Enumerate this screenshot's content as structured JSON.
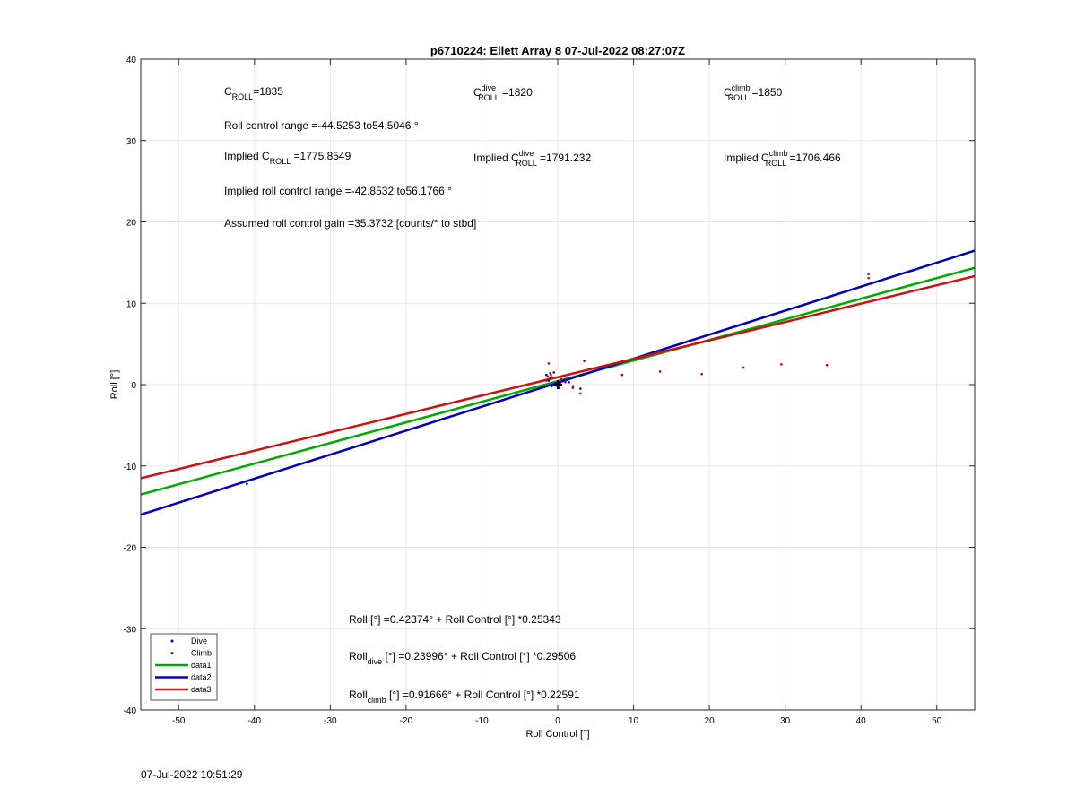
{
  "chart_data": {
    "type": "scatter",
    "title": "p6710224: Ellett Array 8 07-Jul-2022 08:27:07Z",
    "xlabel": "Roll Control [°]",
    "ylabel": "Roll [°]",
    "xlim": [
      -55,
      55
    ],
    "ylim": [
      -40,
      40
    ],
    "xticks": [
      -50,
      -40,
      -30,
      -20,
      -10,
      0,
      10,
      20,
      30,
      40,
      50
    ],
    "yticks": [
      -40,
      -30,
      -20,
      -10,
      0,
      10,
      20,
      30,
      40
    ],
    "grid": true,
    "legend_position": "bottom-left",
    "series": [
      {
        "name": "Dive",
        "kind": "points",
        "color": "#0000cc",
        "points": [
          [
            -41,
            -12.2
          ],
          [
            -2.5,
            -0.5
          ],
          [
            -1.8,
            -0.3
          ],
          [
            -1.5,
            1.2
          ],
          [
            -1.2,
            0.5
          ],
          [
            -1,
            0.8
          ],
          [
            -0.8,
            -0.2
          ],
          [
            -0.5,
            1.5
          ],
          [
            -0.3,
            0.2
          ],
          [
            0,
            -0.3
          ],
          [
            0.3,
            0.1
          ],
          [
            0.5,
            0.4
          ],
          [
            1,
            0.6
          ],
          [
            1.5,
            0.3
          ],
          [
            2,
            -0.2
          ],
          [
            3,
            -0.5
          ],
          [
            -0.2,
            -0.1
          ],
          [
            0.2,
            -0.4
          ]
        ]
      },
      {
        "name": "Climb",
        "kind": "points",
        "color": "#cc0000",
        "points": [
          [
            -1.5,
            0.5
          ],
          [
            -1.2,
            2.6
          ],
          [
            -1,
            1.4
          ],
          [
            -0.8,
            0.9
          ],
          [
            0.5,
            0.7
          ],
          [
            1,
            0.3
          ],
          [
            2,
            -0.4
          ],
          [
            3,
            -1.1
          ],
          [
            3.5,
            2.9
          ],
          [
            8.5,
            1.2
          ],
          [
            13.5,
            1.6
          ],
          [
            19,
            1.3
          ],
          [
            24.5,
            2.1
          ],
          [
            29.5,
            2.5
          ],
          [
            35.5,
            2.4
          ],
          [
            41,
            13.6
          ],
          [
            41,
            13.1
          ],
          [
            -1.3,
            1.0
          ],
          [
            -0.9,
            1.2
          ]
        ]
      },
      {
        "name": "data1",
        "kind": "line",
        "color": "#00aa00",
        "intercept": 0.42374,
        "slope": 0.25343
      },
      {
        "name": "data2",
        "kind": "line",
        "color": "#0000bb",
        "intercept": 0.23996,
        "slope": 0.29506
      },
      {
        "name": "data3",
        "kind": "line",
        "color": "#cc1111",
        "intercept": 0.91666,
        "slope": 0.22591
      }
    ],
    "center_marker": [
      0,
      0
    ],
    "annotations": {
      "c_roll": {
        "main": "C",
        "sub": "ROLL",
        "value": "=1835"
      },
      "c_roll_dive": {
        "main": "C",
        "sup": "dive",
        "sub": "ROLL",
        "value": " =1820"
      },
      "c_roll_climb": {
        "main": "C",
        "sup": "climb",
        "sub": "ROLL",
        "value": " =1850"
      },
      "roll_control_range": "Roll control range =-44.5253 to54.5046 °",
      "implied_c_roll": {
        "main": "Implied C",
        "sub": "ROLL",
        "value": " =1775.8549"
      },
      "implied_c_roll_dive": {
        "main": "Implied C",
        "sup": "dive",
        "sub": "ROLL",
        "value": " =1791.232"
      },
      "implied_c_roll_climb": {
        "main": "Implied C",
        "sup": "climb",
        "sub": "ROLL",
        "value": " =1706.466"
      },
      "implied_roll_control_range": "Implied roll control range =-42.8532 to56.1766 °",
      "assumed_gain": "Assumed roll control gain =35.3732 [counts/° to stbd]",
      "fit_all": "Roll [°] =0.42374° + Roll Control [°] *0.25343",
      "fit_dive": {
        "main": "Roll",
        "sub": "dive",
        "value": " [°] =0.23996° + Roll Control [°] *0.29506"
      },
      "fit_climb": {
        "main": "Roll",
        "sub": "climb",
        "value": " [°] =0.91666° + Roll Control [°] *0.22591"
      }
    }
  },
  "footer": {
    "timestamp": "07-Jul-2022 10:51:29"
  }
}
